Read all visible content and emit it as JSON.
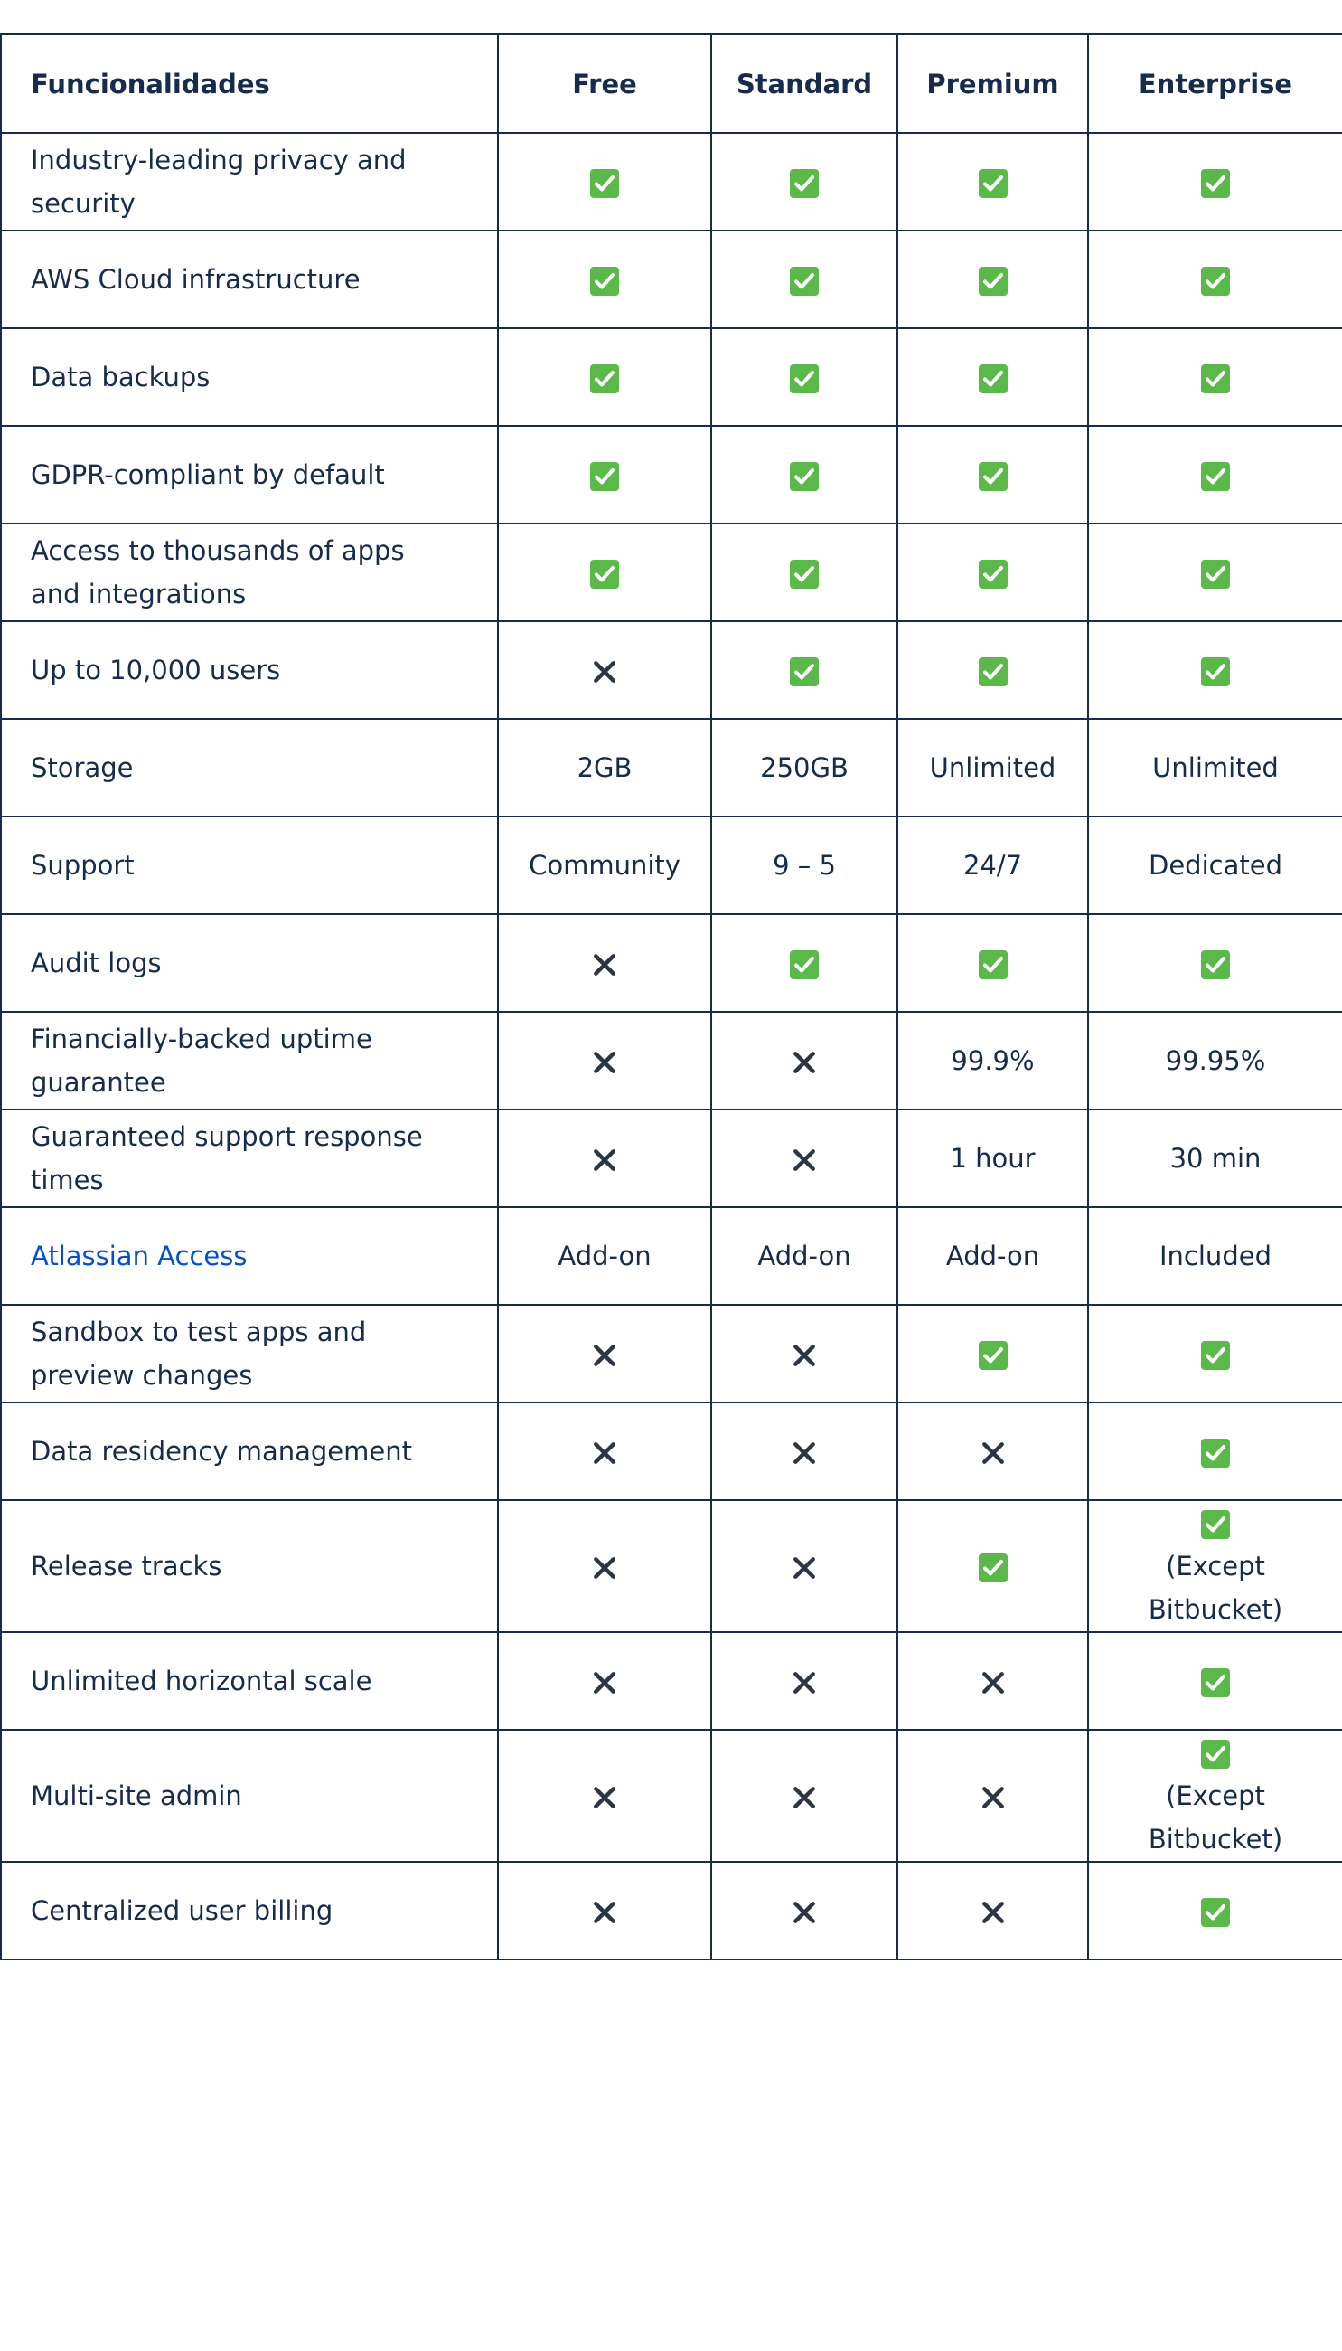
{
  "table": {
    "headers": [
      "Funcionalidades",
      "Free",
      "Standard",
      "Premium",
      "Enterprise"
    ],
    "rows": [
      {
        "feature": "Industry-leading privacy and security",
        "cells": [
          true,
          true,
          true,
          true
        ]
      },
      {
        "feature": "AWS Cloud infrastructure",
        "cells": [
          true,
          true,
          true,
          true
        ]
      },
      {
        "feature": "Data backups",
        "cells": [
          true,
          true,
          true,
          true
        ]
      },
      {
        "feature": "GDPR-compliant by default",
        "cells": [
          true,
          true,
          true,
          true
        ]
      },
      {
        "feature": "Access to thousands of apps and integrations",
        "cells": [
          true,
          true,
          true,
          true
        ]
      },
      {
        "feature": "Up to 10,000 users",
        "cells": [
          false,
          true,
          true,
          true
        ]
      },
      {
        "feature": "Storage",
        "cells": [
          "2GB",
          "250GB",
          "Unlimited",
          "Unlimited"
        ]
      },
      {
        "feature": "Support",
        "cells": [
          "Community",
          "9 – 5",
          "24/7",
          "Dedicated"
        ]
      },
      {
        "feature": "Audit logs",
        "cells": [
          false,
          true,
          true,
          true
        ]
      },
      {
        "feature": "Financially-backed uptime guarantee",
        "cells": [
          false,
          false,
          "99.9%",
          "99.95%"
        ]
      },
      {
        "feature": "Guaranteed support response times",
        "cells": [
          false,
          false,
          "1 hour",
          "30 min"
        ]
      },
      {
        "feature": "Atlassian Access",
        "link": true,
        "cells": [
          "Add-on",
          "Add-on",
          "Add-on",
          "Included"
        ]
      },
      {
        "feature": "Sandbox to test apps and preview changes",
        "cells": [
          false,
          false,
          true,
          true
        ]
      },
      {
        "feature": "Data residency management",
        "cells": [
          false,
          false,
          false,
          true
        ]
      },
      {
        "feature": "Release tracks",
        "cells": [
          false,
          false,
          true,
          {
            "icon": true,
            "text": "(Except Bitbucket)"
          }
        ]
      },
      {
        "feature": "Unlimited horizontal scale",
        "cells": [
          false,
          false,
          false,
          true
        ]
      },
      {
        "feature": "Multi-site admin",
        "cells": [
          false,
          false,
          false,
          {
            "icon": true,
            "text": "(Except Bitbucket)"
          }
        ]
      },
      {
        "feature": "Centralized user billing",
        "cells": [
          false,
          false,
          false,
          true
        ]
      }
    ]
  }
}
